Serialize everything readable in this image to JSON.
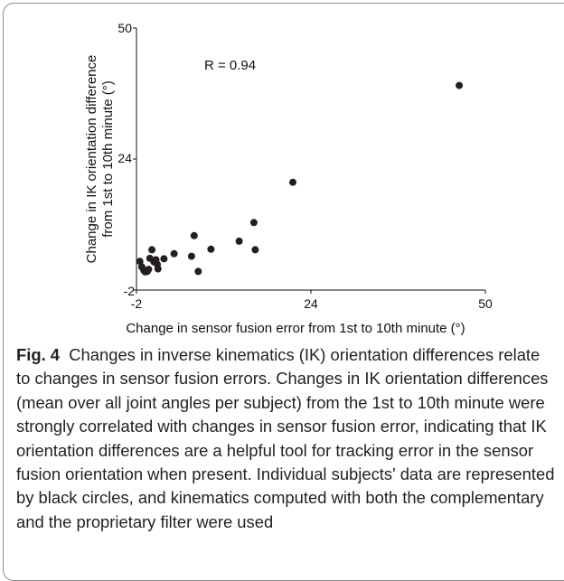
{
  "chart_data": {
    "type": "scatter",
    "title": "",
    "xlabel": "Change in sensor fusion error from 1st to 10th minute (°)",
    "ylabel_line1": "Change in IK orientation difference",
    "ylabel_line2": "from 1st to 10th minute (°)",
    "xlim": [
      -2,
      50
    ],
    "ylim": [
      -2,
      50
    ],
    "x_ticks": [
      "-2",
      "24",
      "50"
    ],
    "y_ticks": [
      "-2",
      "24",
      "50"
    ],
    "annotation": "R = 0.94",
    "marker_color": "#231f20",
    "points": [
      {
        "x": -1.5,
        "y": 3.7
      },
      {
        "x": -1.2,
        "y": 2.6
      },
      {
        "x": -0.9,
        "y": 1.9
      },
      {
        "x": -0.7,
        "y": 1.6
      },
      {
        "x": -0.4,
        "y": 1.7
      },
      {
        "x": -0.2,
        "y": 2.1
      },
      {
        "x": 0.0,
        "y": 4.3
      },
      {
        "x": 0.3,
        "y": 6.0
      },
      {
        "x": 0.6,
        "y": 3.6
      },
      {
        "x": 0.9,
        "y": 4.0
      },
      {
        "x": 1.1,
        "y": 3.1
      },
      {
        "x": 1.2,
        "y": 2.2
      },
      {
        "x": 2.1,
        "y": 4.2
      },
      {
        "x": 3.6,
        "y": 5.2
      },
      {
        "x": 6.2,
        "y": 4.7
      },
      {
        "x": 6.6,
        "y": 8.8
      },
      {
        "x": 7.2,
        "y": 1.7
      },
      {
        "x": 9.1,
        "y": 6.1
      },
      {
        "x": 13.3,
        "y": 7.7
      },
      {
        "x": 15.5,
        "y": 11.4
      },
      {
        "x": 15.7,
        "y": 6.0
      },
      {
        "x": 21.3,
        "y": 19.4
      },
      {
        "x": 46.1,
        "y": 38.6
      }
    ]
  },
  "caption": {
    "figure_label": "Fig. 4",
    "text": "Changes in inverse kinematics (IK) orientation differences relate to changes in sensor fusion errors. Changes in IK orientation differences (mean over all joint angles per subject) from the 1st to 10th minute were strongly correlated with changes in sensor fusion error, indicating that IK orientation differences are a helpful tool for tracking error in the sensor fusion orientation when present. Individual subjects' data are represented by black circles, and kinematics computed with both the complementary and the proprietary filter were used"
  }
}
